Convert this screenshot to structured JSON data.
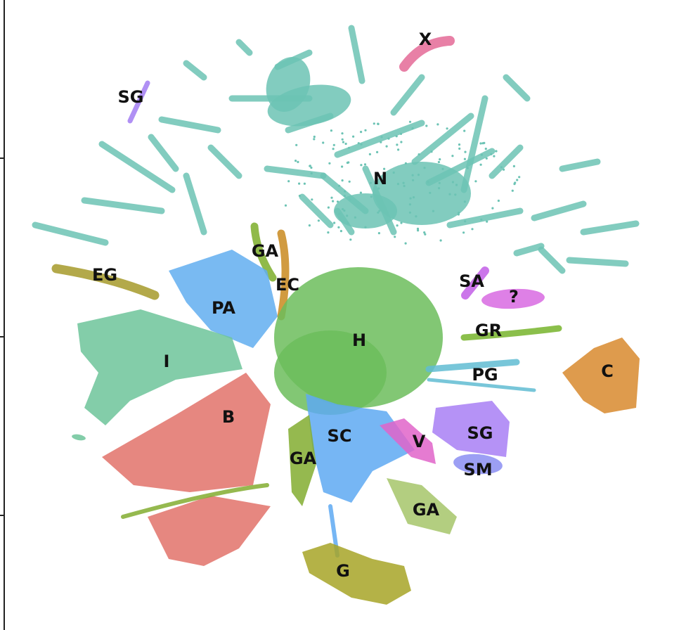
{
  "chart_data": {
    "type": "scatter",
    "title": "",
    "xlabel": "",
    "ylabel": "",
    "grid": false,
    "legend": "none",
    "clusters": [
      {
        "label": "X",
        "color": "#e46a96"
      },
      {
        "label": "SG",
        "color": "#a27cf2"
      },
      {
        "label": "N",
        "color": "#6cc3b4"
      },
      {
        "label": "GA",
        "color": "#7cae2a"
      },
      {
        "label": "EC",
        "color": "#c98a1e"
      },
      {
        "label": "EG",
        "color": "#a69a2a"
      },
      {
        "label": "PA",
        "color": "#61aef0"
      },
      {
        "label": "I",
        "color": "#6dc49a"
      },
      {
        "label": "H",
        "color": "#6cbd5c"
      },
      {
        "label": "SA",
        "color": "#c25ee6"
      },
      {
        "label": "?",
        "color": "#d86ae2"
      },
      {
        "label": "GR",
        "color": "#77b42c"
      },
      {
        "label": "C",
        "color": "#d8892e"
      },
      {
        "label": "PG",
        "color": "#60bcd2"
      },
      {
        "label": "B",
        "color": "#e2726a"
      },
      {
        "label": "SC",
        "color": "#5ea9f2"
      },
      {
        "label": "V",
        "color": "#e064c9"
      },
      {
        "label": "SG",
        "color": "#a87ff4"
      },
      {
        "label": "SM",
        "color": "#8b8ef2"
      },
      {
        "label": "GA",
        "color": "#82ad30"
      },
      {
        "label": "GA",
        "color": "#80ae2c"
      },
      {
        "label": "G",
        "color": "#a7a527"
      }
    ]
  }
}
